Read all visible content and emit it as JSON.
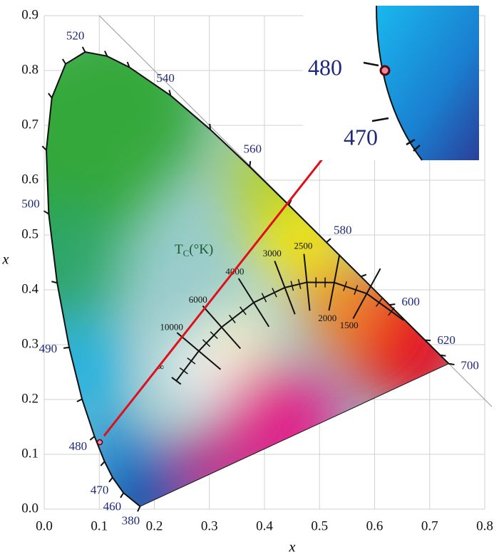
{
  "chart_data": {
    "type": "scatter",
    "x_label": "x",
    "y_label": "x",
    "xlim": [
      0,
      0.8
    ],
    "ylim": [
      0,
      0.9
    ],
    "xticks": [
      {
        "value": 0,
        "label": "0.0"
      },
      0.1,
      0.2,
      0.3,
      0.4,
      0.5,
      0.6,
      0.7,
      0.8
    ],
    "yticks": [
      {
        "value": 0,
        "label": "0.0"
      },
      0.1,
      0.2,
      0.3,
      0.4,
      0.5,
      0.6,
      0.7,
      0.8,
      0.9
    ],
    "grid": true,
    "series": [
      {
        "color": "#e88a9a",
        "x": [
          0.101
        ],
        "values": [
          0.122
        ]
      }
    ],
    "spectral_locus": {
      "x": [
        0.1741,
        0.144,
        0.1241,
        0.1096,
        0.0913,
        0.0687,
        0.0454,
        0.0235,
        0.0082,
        0.0039,
        0.0139,
        0.0389,
        0.0743,
        0.1142,
        0.1547,
        0.2296,
        0.3016,
        0.3731,
        0.4441,
        0.5125,
        0.5752,
        0.627,
        0.6915,
        0.719,
        0.7347
      ],
      "y": [
        0.005,
        0.0297,
        0.0578,
        0.0868,
        0.1327,
        0.2007,
        0.295,
        0.4127,
        0.5384,
        0.6548,
        0.7502,
        0.812,
        0.8338,
        0.8262,
        0.8059,
        0.7543,
        0.6923,
        0.6245,
        0.5547,
        0.4866,
        0.4242,
        0.3725,
        0.3083,
        0.2809,
        0.2653
      ],
      "wavelengths": [
        "380",
        "460",
        "470",
        null,
        "480",
        null,
        "490",
        null,
        "500",
        null,
        null,
        null,
        "520",
        null,
        null,
        "540",
        null,
        "560",
        null,
        "580",
        null,
        "600",
        "620",
        null,
        "700"
      ]
    },
    "planckian_locus": {
      "x": [
        0.2399,
        0.2807,
        0.3221,
        0.3805,
        0.4369,
        0.477,
        0.5267,
        0.5857,
        0.6528
      ],
      "y": [
        0.2341,
        0.2884,
        0.3318,
        0.3768,
        0.4041,
        0.4137,
        0.4133,
        0.3931,
        0.3444
      ],
      "temperatures": [
        "∞",
        "10000",
        "6000",
        "4000",
        "3000",
        "2500",
        "2000",
        "1500",
        null
      ]
    },
    "cct_title": {
      "main": "T",
      "sub": "C",
      "rest": "(°K)"
    },
    "inset": {
      "labels": [
        "480",
        "470"
      ]
    }
  }
}
